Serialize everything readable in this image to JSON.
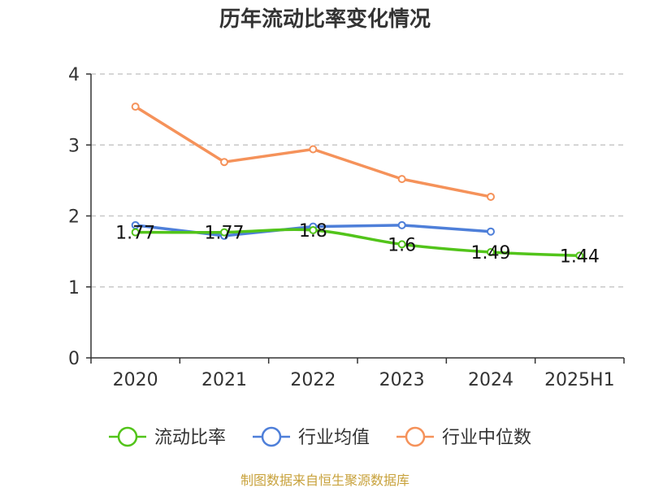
{
  "chart_data": {
    "type": "line",
    "title": "历年流动比率变化情况",
    "categories": [
      "2020",
      "2021",
      "2022",
      "2023",
      "2024",
      "2025H1"
    ],
    "y_ticks": [
      "0",
      "1",
      "2",
      "3",
      "4"
    ],
    "ylim": [
      0,
      4
    ],
    "grid": true,
    "legend_position": "bottom",
    "series": [
      {
        "name": "流动比率",
        "color": "#52c41a",
        "values": [
          1.77,
          1.77,
          1.8,
          1.6,
          1.49,
          1.44
        ],
        "labels": [
          "1.77",
          "1.77",
          "1.8",
          "1.6",
          "1.49",
          "1.44"
        ]
      },
      {
        "name": "行业均值",
        "color": "#4e7fd9",
        "values": [
          1.87,
          1.72,
          1.85,
          1.87,
          1.78,
          null
        ]
      },
      {
        "name": "行业中位数",
        "color": "#f5925a",
        "values": [
          3.54,
          2.76,
          2.94,
          2.52,
          2.27,
          null
        ]
      }
    ],
    "source": "制图数据来自恒生聚源数据库"
  }
}
